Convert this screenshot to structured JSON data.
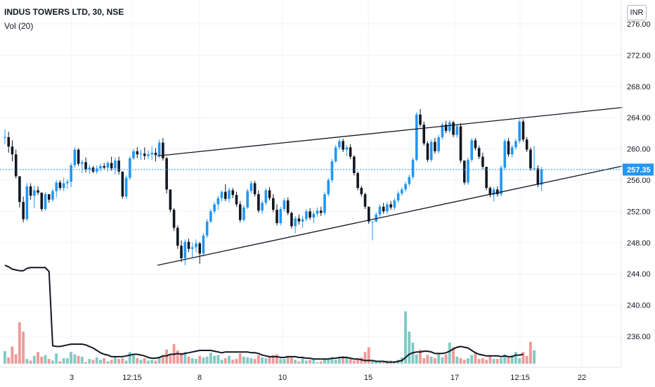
{
  "header": {
    "symbol_title": "INDUS TOWERS LTD, 30, NSE",
    "volume_label": "Vol (20)",
    "currency": "INR"
  },
  "colors": {
    "up": "#2196f3",
    "down": "#131722",
    "vol_up": "#80cbc4",
    "vol_down": "#ef9a9a",
    "last_price": "#2196f3",
    "trendline": "#131722"
  },
  "chart_data": {
    "type": "candlestick",
    "title": "INDUS TOWERS LTD, 30, NSE",
    "ylim": [
      232.5,
      277.5
    ],
    "y_ticks": [
      "276.00",
      "272.00",
      "268.00",
      "264.00",
      "260.00",
      "256.00",
      "252.00",
      "248.00",
      "244.00",
      "240.00",
      "236.00"
    ],
    "x_ticks": [
      "3",
      "12:15",
      "8",
      "10",
      "15",
      "17",
      "12:15",
      "22"
    ],
    "last_price": "257.35",
    "grid": true,
    "legend": "top-left",
    "candles": [
      [
        261.5,
        262.5,
        260.6,
        261.5
      ],
      [
        261.5,
        262.2,
        259.5,
        260.3
      ],
      [
        260.3,
        261.1,
        258.4,
        259.3
      ],
      [
        259.3,
        259.9,
        256.2,
        256.5
      ],
      [
        256.5,
        256.5,
        252.5,
        253.2
      ],
      [
        253.2,
        253.9,
        250.6,
        251.0
      ],
      [
        251.0,
        255.6,
        250.8,
        255.2
      ],
      [
        255.2,
        255.6,
        253.5,
        254.0
      ],
      [
        254.0,
        255.3,
        252.4,
        254.7
      ],
      [
        254.7,
        255.2,
        254.1,
        254.4
      ],
      [
        254.4,
        254.4,
        252.0,
        252.3
      ],
      [
        252.3,
        254.5,
        252.1,
        254.2
      ],
      [
        254.2,
        254.2,
        253.1,
        253.5
      ],
      [
        253.5,
        254.9,
        253.2,
        254.6
      ],
      [
        254.6,
        256.0,
        253.8,
        255.7
      ],
      [
        255.7,
        256.0,
        254.7,
        255.0
      ],
      [
        255.0,
        256.3,
        254.6,
        255.6
      ],
      [
        255.6,
        256.1,
        254.9,
        255.8
      ],
      [
        255.8,
        258.2,
        255.1,
        257.9
      ],
      [
        257.9,
        260.2,
        257.6,
        259.9
      ],
      [
        259.9,
        260.1,
        257.8,
        258.1
      ],
      [
        258.1,
        258.6,
        256.9,
        258.3
      ],
      [
        258.3,
        258.9,
        257.0,
        257.4
      ],
      [
        257.4,
        258.0,
        256.8,
        257.6
      ],
      [
        257.6,
        257.8,
        256.9,
        257.1
      ],
      [
        257.1,
        257.9,
        256.8,
        257.5
      ],
      [
        257.5,
        258.1,
        257.1,
        257.8
      ],
      [
        257.8,
        258.2,
        257.4,
        257.6
      ],
      [
        257.6,
        258.4,
        257.1,
        258.2
      ],
      [
        258.2,
        259.0,
        257.2,
        257.5
      ],
      [
        257.5,
        258.9,
        256.7,
        258.5
      ],
      [
        258.5,
        259.0,
        256.7,
        257.1
      ],
      [
        257.1,
        257.1,
        253.6,
        253.9
      ],
      [
        253.9,
        256.6,
        253.6,
        256.3
      ],
      [
        256.3,
        259.1,
        256.0,
        258.8
      ],
      [
        258.8,
        260.0,
        258.6,
        259.7
      ],
      [
        259.7,
        260.2,
        258.8,
        259.3
      ],
      [
        259.3,
        259.9,
        258.6,
        259.4
      ],
      [
        259.4,
        260.2,
        258.6,
        259.1
      ],
      [
        259.1,
        259.8,
        258.7,
        259.3
      ],
      [
        259.3,
        260.3,
        258.6,
        259.5
      ],
      [
        259.5,
        260.1,
        258.4,
        259.2
      ],
      [
        259.2,
        261.2,
        258.8,
        260.8
      ],
      [
        260.8,
        261.4,
        258.5,
        258.8
      ],
      [
        258.8,
        259.0,
        254.3,
        254.8
      ],
      [
        254.8,
        254.8,
        251.9,
        252.2
      ],
      [
        252.2,
        252.4,
        249.5,
        249.9
      ],
      [
        249.9,
        250.2,
        247.2,
        247.6
      ],
      [
        247.6,
        248.3,
        245.5,
        246.0
      ],
      [
        246.0,
        248.4,
        245.1,
        248.1
      ],
      [
        248.1,
        248.5,
        246.8,
        247.2
      ],
      [
        247.2,
        248.0,
        246.0,
        247.4
      ],
      [
        247.4,
        248.4,
        246.7,
        247.9
      ],
      [
        247.9,
        248.1,
        245.3,
        246.6
      ],
      [
        246.6,
        249.2,
        246.2,
        248.9
      ],
      [
        248.9,
        251.0,
        248.6,
        250.7
      ],
      [
        250.7,
        252.3,
        250.5,
        252.0
      ],
      [
        252.0,
        253.2,
        251.7,
        252.9
      ],
      [
        252.9,
        254.0,
        252.2,
        253.7
      ],
      [
        253.7,
        254.7,
        253.3,
        254.5
      ],
      [
        254.5,
        255.5,
        253.3,
        253.6
      ],
      [
        253.6,
        255.0,
        253.1,
        254.7
      ],
      [
        254.7,
        255.0,
        253.7,
        254.1
      ],
      [
        254.1,
        254.5,
        252.6,
        252.9
      ],
      [
        252.9,
        253.3,
        250.6,
        250.9
      ],
      [
        250.9,
        252.8,
        250.7,
        252.5
      ],
      [
        252.5,
        254.9,
        252.3,
        254.6
      ],
      [
        254.6,
        255.9,
        254.3,
        255.6
      ],
      [
        255.6,
        255.9,
        253.9,
        254.2
      ],
      [
        254.2,
        254.7,
        251.8,
        252.1
      ],
      [
        252.1,
        253.4,
        251.7,
        253.1
      ],
      [
        253.1,
        255.0,
        252.8,
        254.7
      ],
      [
        254.7,
        255.1,
        253.4,
        253.7
      ],
      [
        253.7,
        254.2,
        251.9,
        252.2
      ],
      [
        252.2,
        252.9,
        250.2,
        250.5
      ],
      [
        250.5,
        252.6,
        250.2,
        252.3
      ],
      [
        252.3,
        253.7,
        252.0,
        253.4
      ],
      [
        253.4,
        253.8,
        251.5,
        251.8
      ],
      [
        251.8,
        252.0,
        249.8,
        250.1
      ],
      [
        250.1,
        251.4,
        249.2,
        251.1
      ],
      [
        251.1,
        251.6,
        250.3,
        250.7
      ],
      [
        250.7,
        251.4,
        249.9,
        251.0
      ],
      [
        251.0,
        252.3,
        250.7,
        252.0
      ],
      [
        252.0,
        252.4,
        250.9,
        251.2
      ],
      [
        251.2,
        252.0,
        250.5,
        251.7
      ],
      [
        251.7,
        252.5,
        251.3,
        252.1
      ],
      [
        252.1,
        252.6,
        251.4,
        251.8
      ],
      [
        251.8,
        254.5,
        251.5,
        254.2
      ],
      [
        254.2,
        256.3,
        253.9,
        256.0
      ],
      [
        256.0,
        258.7,
        255.7,
        258.4
      ],
      [
        258.4,
        260.5,
        258.2,
        260.2
      ],
      [
        260.2,
        261.3,
        259.9,
        261.0
      ],
      [
        261.0,
        261.3,
        259.6,
        259.9
      ],
      [
        259.9,
        260.5,
        259.1,
        260.2
      ],
      [
        260.2,
        260.6,
        258.7,
        259.0
      ],
      [
        259.0,
        259.2,
        256.6,
        256.9
      ],
      [
        256.9,
        257.1,
        254.7,
        255.0
      ],
      [
        255.0,
        255.3,
        253.9,
        254.2
      ],
      [
        254.2,
        254.4,
        252.3,
        252.6
      ],
      [
        252.6,
        252.6,
        250.4,
        250.7
      ],
      [
        250.7,
        250.7,
        248.3,
        250.7
      ],
      [
        250.7,
        251.9,
        250.6,
        251.6
      ],
      [
        251.6,
        252.9,
        251.3,
        252.6
      ],
      [
        252.6,
        253.1,
        251.7,
        252.0
      ],
      [
        252.0,
        253.2,
        251.7,
        252.9
      ],
      [
        252.9,
        253.3,
        252.2,
        252.5
      ],
      [
        252.5,
        253.7,
        252.2,
        253.4
      ],
      [
        253.4,
        254.6,
        253.1,
        254.3
      ],
      [
        254.3,
        255.1,
        254.0,
        254.8
      ],
      [
        254.8,
        255.8,
        254.5,
        255.5
      ],
      [
        255.5,
        256.7,
        255.2,
        256.4
      ],
      [
        256.4,
        258.9,
        256.1,
        258.6
      ],
      [
        258.6,
        264.7,
        258.4,
        264.4
      ],
      [
        264.4,
        265.1,
        262.8,
        263.1
      ],
      [
        263.1,
        263.5,
        260.4,
        260.7
      ],
      [
        260.7,
        261.0,
        258.3,
        258.6
      ],
      [
        258.6,
        261.2,
        258.3,
        260.9
      ],
      [
        260.9,
        261.4,
        259.4,
        259.7
      ],
      [
        259.7,
        261.8,
        259.4,
        261.5
      ],
      [
        261.5,
        263.4,
        261.2,
        263.1
      ],
      [
        263.1,
        263.6,
        262.0,
        262.3
      ],
      [
        262.3,
        263.7,
        262.0,
        263.4
      ],
      [
        263.4,
        263.6,
        261.5,
        261.8
      ],
      [
        261.8,
        263.2,
        261.4,
        262.9
      ],
      [
        262.9,
        263.3,
        258.2,
        258.5
      ],
      [
        258.5,
        258.5,
        255.4,
        255.7
      ],
      [
        255.7,
        258.9,
        255.4,
        258.6
      ],
      [
        258.6,
        261.4,
        258.3,
        261.1
      ],
      [
        261.1,
        261.4,
        259.8,
        260.1
      ],
      [
        260.1,
        260.4,
        258.7,
        259.0
      ],
      [
        259.0,
        259.5,
        257.4,
        257.7
      ],
      [
        257.7,
        257.7,
        254.7,
        255.0
      ],
      [
        255.0,
        255.2,
        253.8,
        254.1
      ],
      [
        254.1,
        255.1,
        253.3,
        254.8
      ],
      [
        254.8,
        255.2,
        253.9,
        254.2
      ],
      [
        254.2,
        257.9,
        253.9,
        257.6
      ],
      [
        257.6,
        261.3,
        257.3,
        261.0
      ],
      [
        261.0,
        261.4,
        259.0,
        259.3
      ],
      [
        259.3,
        260.5,
        258.9,
        260.2
      ],
      [
        260.2,
        261.3,
        259.9,
        261.0
      ],
      [
        261.0,
        263.8,
        260.7,
        263.5
      ],
      [
        263.5,
        263.8,
        260.9,
        261.2
      ],
      [
        261.2,
        261.5,
        259.6,
        259.9
      ],
      [
        259.9,
        260.2,
        257.2,
        257.5
      ],
      [
        257.5,
        260.4,
        257.2,
        257.5
      ],
      [
        257.5,
        257.9,
        255.1,
        255.4
      ],
      [
        255.4,
        257.7,
        254.6,
        257.35
      ]
    ],
    "volume_ma": [
      245.1,
      244.9,
      244.6,
      244.5,
      244.4,
      244.4,
      244.7,
      244.8,
      244.8,
      244.8,
      244.8,
      244.8,
      244.3,
      234.8,
      234.7,
      234.7,
      234.8,
      234.9,
      235.0,
      235.0,
      235.0,
      235.0,
      234.9,
      234.7,
      234.5,
      234.2,
      233.9,
      233.7,
      233.6,
      233.4,
      233.4,
      233.4,
      233.4,
      233.5,
      233.6,
      233.7,
      233.7,
      233.6,
      233.5,
      233.3,
      233.2,
      233.2,
      233.3,
      233.5,
      233.5,
      233.7,
      233.7,
      233.8,
      233.7,
      233.8,
      233.9,
      234.0,
      234.1,
      234.2,
      234.2,
      234.2,
      234.2,
      234.1,
      234.0,
      233.9,
      234.0,
      234.0,
      234.0,
      234.0,
      234.0,
      234.0,
      234.0,
      233.9,
      233.9,
      233.8,
      233.6,
      233.5,
      233.4,
      233.4,
      233.4,
      233.3,
      233.3,
      233.4,
      233.4,
      233.4,
      233.3,
      233.3,
      233.2,
      233.2,
      233.1,
      233.1,
      233.1,
      233.1,
      233.1,
      233.2,
      233.2,
      233.3,
      233.3,
      233.3,
      233.2,
      233.1,
      233.1,
      233.0,
      232.9,
      232.9,
      232.9,
      232.8,
      232.8,
      232.8,
      232.7,
      232.7,
      232.7,
      232.8,
      232.9,
      233.3,
      233.7,
      233.9,
      234.0,
      234.0,
      234.1,
      234.1,
      234.0,
      233.8,
      233.8,
      233.8,
      233.9,
      234.1,
      234.4,
      234.6,
      234.7,
      234.6,
      234.5,
      234.2,
      233.9,
      233.7,
      233.6,
      233.5,
      233.5,
      233.5,
      233.5,
      233.4,
      233.5,
      233.4,
      233.4,
      233.6,
      233.6,
      233.7
    ],
    "volume": [
      234.1,
      233.3,
      234.7,
      233.7,
      237.8,
      236.6,
      233.1,
      232.9,
      233.5,
      234.0,
      233.4,
      233.6,
      233.1,
      232.9,
      233.8,
      232.8,
      233.2,
      233.2,
      234.0,
      233.7,
      233.5,
      233.4,
      232.7,
      233.1,
      233.0,
      233.3,
      233.0,
      233.2,
      232.8,
      233.0,
      233.4,
      233.1,
      233.2,
      232.9,
      234.0,
      233.6,
      233.2,
      233.0,
      233.2,
      232.9,
      233.0,
      232.9,
      233.3,
      233.5,
      234.3,
      233.6,
      235.0,
      234.2,
      233.9,
      234.0,
      233.4,
      233.2,
      233.1,
      233.5,
      233.3,
      233.4,
      233.9,
      233.5,
      233.6,
      233.0,
      233.2,
      233.5,
      233.0,
      233.1,
      233.8,
      233.4,
      233.3,
      233.2,
      233.1,
      233.6,
      233.3,
      233.2,
      233.4,
      233.6,
      233.7,
      233.1,
      233.1,
      233.5,
      233.3,
      233.0,
      232.8,
      233.2,
      232.9,
      233.0,
      233.0,
      232.7,
      232.8,
      233.1,
      233.0,
      233.3,
      233.0,
      233.2,
      233.5,
      233.4,
      233.1,
      232.9,
      233.2,
      233.3,
      234.0,
      234.6,
      232.8,
      232.9,
      232.8,
      232.7,
      232.9,
      232.9,
      232.8,
      233.0,
      233.3,
      239.2,
      236.6,
      235.2,
      233.7,
      234.3,
      233.2,
      233.6,
      233.4,
      233.2,
      233.8,
      233.3,
      233.7,
      235.2,
      234.6,
      233.4,
      233.2,
      233.0,
      233.2,
      233.6,
      233.8,
      233.1,
      233.2,
      233.0,
      233.6,
      233.1,
      233.1,
      233.2,
      233.7,
      233.3,
      233.6,
      234.0,
      233.2,
      234.0,
      233.5,
      235.3,
      234.2
    ]
  }
}
